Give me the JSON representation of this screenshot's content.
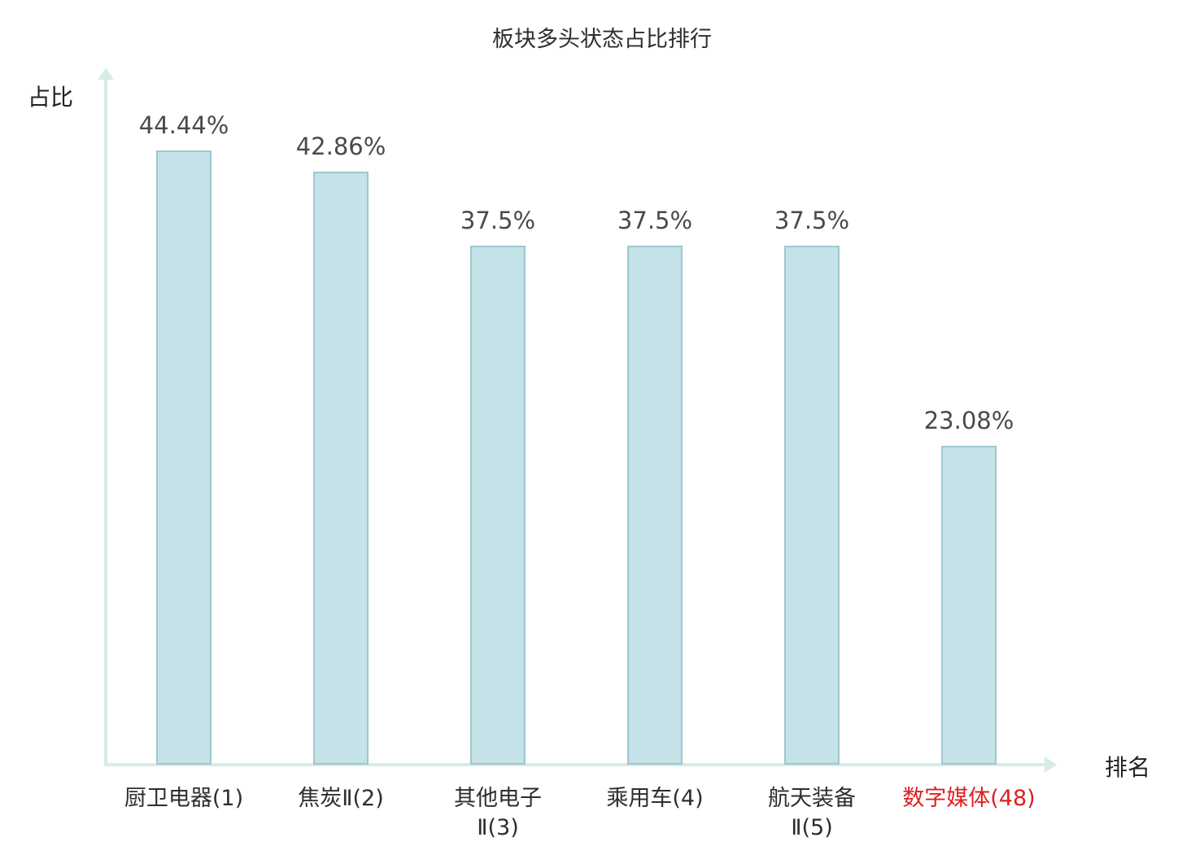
{
  "page": {
    "title": "板块多头状态占比排行",
    "y_axis_label": "占比",
    "x_axis_label": "排名"
  },
  "chart_data": {
    "type": "bar",
    "title": "板块多头状态占比排行",
    "xlabel": "排名",
    "ylabel": "占比",
    "categories": [
      "厨卫电器(1)",
      "焦炭Ⅱ(2)",
      "其他电子\nⅡ(3)",
      "乘用车(4)",
      "航天装备\nⅡ(5)",
      "数字媒体(48)"
    ],
    "values": [
      44.44,
      42.86,
      37.5,
      37.5,
      37.5,
      23.08
    ],
    "value_labels": [
      "44.44%",
      "42.86%",
      "37.5%",
      "37.5%",
      "37.5%",
      "23.08%"
    ],
    "highlight_index": 5,
    "ylim": [
      0,
      50
    ],
    "grid": false,
    "legend_position": "none",
    "colors": {
      "bar_fill": "#c5e2e8",
      "bar_border": "#9dc8d1",
      "axis": "#d7ede3",
      "value_label": "#4a4a4a",
      "category_label": "#2e2e2e",
      "highlight_label": "#e01f1f"
    }
  }
}
